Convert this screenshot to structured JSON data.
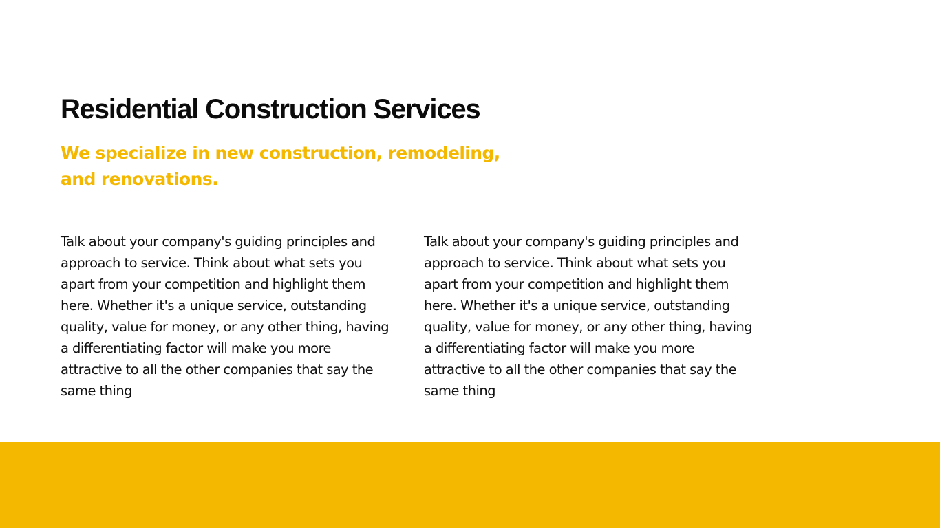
{
  "slide": {
    "title": "Residential Construction Services",
    "subtitle": "We specialize in new construction, remodeling, and renovations.",
    "columns": [
      {
        "text": "Talk about your company's guiding principles and approach to service. Think about what sets you apart from your competition and highlight them here. Whether it's a unique service, outstanding quality, value for money, or any other thing, having a differentiating factor will make you more attractive to all the other companies that say the same thing"
      },
      {
        "text": "Talk about your company's guiding principles and approach to service. Think about what sets you apart from your competition and highlight them here. Whether it's a unique service, outstanding quality, value for money, or any other thing, having a differentiating factor will make you more attractive to all the other companies that say the same thing"
      }
    ]
  },
  "colors": {
    "accent": "#f5b800",
    "title": "#0b0b0b",
    "body": "#111111",
    "background": "#ffffff"
  }
}
